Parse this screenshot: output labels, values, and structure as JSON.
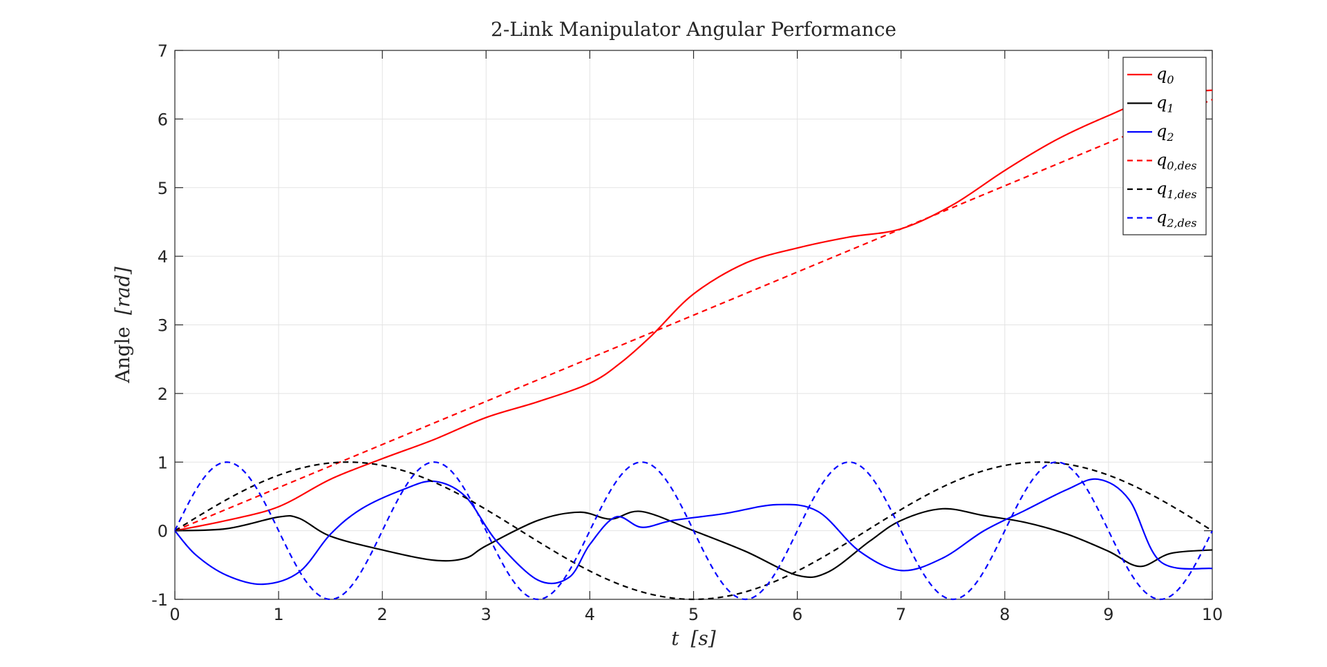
{
  "chart_data": {
    "type": "line",
    "title": "2-Link Manipulator Angular Performance",
    "xlabel_main": "t",
    "xlabel_unit": "[s]",
    "ylabel_main": "Angle",
    "ylabel_unit": "[rad]",
    "xlim": [
      0,
      10
    ],
    "ylim": [
      -1,
      7
    ],
    "xticks": [
      0,
      1,
      2,
      3,
      4,
      5,
      6,
      7,
      8,
      9,
      10
    ],
    "yticks": [
      -1,
      0,
      1,
      2,
      3,
      4,
      5,
      6,
      7
    ],
    "grid": true,
    "legend_position": "top-right",
    "series": [
      {
        "name": "q",
        "sub": "0",
        "color": "#ff0000",
        "dash": "solid",
        "x": [
          0,
          0.5,
          1,
          1.5,
          2,
          2.5,
          3,
          3.5,
          4,
          4.3,
          4.6,
          5,
          5.5,
          6,
          6.5,
          7,
          7.5,
          8,
          8.5,
          9,
          9.5,
          10
        ],
        "y": [
          0,
          0.15,
          0.35,
          0.75,
          1.05,
          1.33,
          1.65,
          1.88,
          2.15,
          2.45,
          2.85,
          3.45,
          3.9,
          4.12,
          4.28,
          4.4,
          4.75,
          5.25,
          5.7,
          6.05,
          6.35,
          6.42
        ]
      },
      {
        "name": "q",
        "sub": "1",
        "color": "#000000",
        "dash": "solid",
        "x": [
          0,
          0.5,
          1,
          1.2,
          1.5,
          2,
          2.5,
          2.8,
          3,
          3.5,
          3.9,
          4.2,
          4.5,
          5,
          5.5,
          6,
          6.3,
          6.7,
          7,
          7.4,
          7.8,
          8.2,
          8.6,
          9,
          9.3,
          9.6,
          10
        ],
        "y": [
          0,
          0.03,
          0.2,
          0.18,
          -0.08,
          -0.28,
          -0.43,
          -0.4,
          -0.22,
          0.15,
          0.27,
          0.17,
          0.28,
          0.0,
          -0.3,
          -0.65,
          -0.6,
          -0.15,
          0.15,
          0.32,
          0.22,
          0.12,
          -0.05,
          -0.3,
          -0.52,
          -0.33,
          -0.28
        ]
      },
      {
        "name": "q",
        "sub": "2",
        "color": "#0000ff",
        "dash": "solid",
        "x": [
          0,
          0.2,
          0.5,
          0.85,
          1.2,
          1.5,
          1.8,
          2.2,
          2.5,
          2.8,
          3.1,
          3.5,
          3.8,
          4.0,
          4.25,
          4.5,
          4.8,
          5.3,
          5.8,
          6.2,
          6.6,
          7.0,
          7.4,
          7.8,
          8.2,
          8.6,
          8.9,
          9.2,
          9.5,
          10
        ],
        "y": [
          0,
          -0.35,
          -0.65,
          -0.78,
          -0.6,
          -0.05,
          0.32,
          0.6,
          0.72,
          0.5,
          -0.15,
          -0.72,
          -0.68,
          -0.2,
          0.2,
          0.05,
          0.15,
          0.25,
          0.38,
          0.28,
          -0.3,
          -0.58,
          -0.4,
          0.0,
          0.3,
          0.6,
          0.75,
          0.45,
          -0.45,
          -0.55
        ]
      },
      {
        "name": "q",
        "sub": "0,des",
        "color": "#ff0000",
        "dash": "dashed",
        "x": [
          0,
          10
        ],
        "y": [
          0,
          6.283
        ]
      },
      {
        "name": "q",
        "sub": "1,des",
        "color": "#000000",
        "dash": "dashed",
        "func": "sin",
        "amp": 1,
        "period": 6.667,
        "range": [
          0,
          10
        ]
      },
      {
        "name": "q",
        "sub": "2,des",
        "color": "#0000ff",
        "dash": "dashed",
        "func": "sin",
        "amp": 1,
        "period": 2.0,
        "range": [
          0,
          10
        ]
      }
    ]
  }
}
